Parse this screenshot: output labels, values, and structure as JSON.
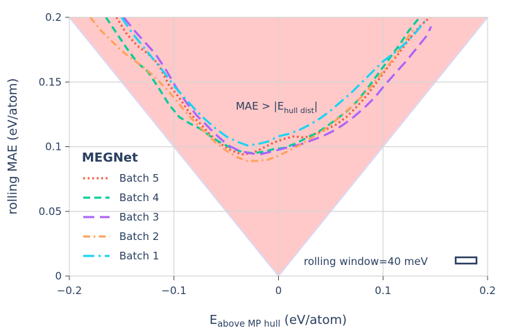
{
  "chart_data": {
    "type": "line",
    "xlabel_main": "E",
    "xlabel_sub": "above MP hull",
    "xlabel_unit": " (eV/atom)",
    "ylabel": "rolling MAE (eV/atom)",
    "xlim": [
      -0.2,
      0.2
    ],
    "ylim": [
      0,
      0.2
    ],
    "x_ticks": [
      -0.2,
      -0.1,
      0,
      0.1,
      0.2
    ],
    "x_tick_labels": [
      "−0.2",
      "−0.1",
      "0",
      "0.1",
      "0.2"
    ],
    "y_ticks": [
      0,
      0.05,
      0.1,
      0.15,
      0.2
    ],
    "y_tick_labels": [
      "0",
      "0.05",
      "0.1",
      "0.15",
      "0.2"
    ],
    "grid": true,
    "triangle_annotation": {
      "prefix": "MAE > |E",
      "sub": "hull dist",
      "suffix": "|",
      "fill": "#ffc9c9"
    },
    "window_annotation": "rolling window=40 meV",
    "legend": {
      "title": "MEGNet",
      "placement": "bottom-left"
    },
    "series": [
      {
        "name": "Batch 5",
        "color": "#ef553b",
        "dash": "dot",
        "x": [
          -0.155,
          -0.145,
          -0.135,
          -0.125,
          -0.115,
          -0.105,
          -0.095,
          -0.085,
          -0.075,
          -0.065,
          -0.055,
          -0.045,
          -0.035,
          -0.025,
          -0.015,
          -0.005,
          0.005,
          0.015,
          0.025,
          0.035,
          0.045,
          0.055,
          0.065,
          0.075,
          0.085,
          0.095,
          0.105,
          0.115,
          0.125,
          0.135,
          0.145
        ],
        "y": [
          0.2,
          0.187,
          0.178,
          0.172,
          0.164,
          0.148,
          0.138,
          0.126,
          0.118,
          0.109,
          0.102,
          0.097,
          0.094,
          0.095,
          0.099,
          0.103,
          0.106,
          0.108,
          0.107,
          0.11,
          0.113,
          0.117,
          0.123,
          0.131,
          0.14,
          0.151,
          0.162,
          0.172,
          0.183,
          0.193,
          0.2
        ]
      },
      {
        "name": "Batch 4",
        "color": "#00cc96",
        "dash": "dash",
        "x": [
          -0.165,
          -0.155,
          -0.145,
          -0.135,
          -0.125,
          -0.115,
          -0.105,
          -0.095,
          -0.085,
          -0.075,
          -0.065,
          -0.055,
          -0.045,
          -0.035,
          -0.025,
          -0.015,
          -0.005,
          0.005,
          0.015,
          0.025,
          0.035,
          0.045,
          0.055,
          0.065,
          0.075,
          0.085,
          0.095,
          0.105,
          0.115,
          0.125,
          0.135
        ],
        "y": [
          0.2,
          0.188,
          0.176,
          0.165,
          0.158,
          0.146,
          0.133,
          0.123,
          0.118,
          0.114,
          0.108,
          0.103,
          0.099,
          0.096,
          0.095,
          0.096,
          0.098,
          0.099,
          0.102,
          0.106,
          0.11,
          0.115,
          0.121,
          0.127,
          0.135,
          0.145,
          0.156,
          0.167,
          0.178,
          0.19,
          0.2
        ]
      },
      {
        "name": "Batch 3",
        "color": "#ab63fa",
        "dash": "longdash",
        "x": [
          -0.148,
          -0.138,
          -0.128,
          -0.118,
          -0.108,
          -0.098,
          -0.088,
          -0.078,
          -0.068,
          -0.058,
          -0.048,
          -0.038,
          -0.028,
          -0.018,
          -0.008,
          0.002,
          0.012,
          0.022,
          0.032,
          0.042,
          0.052,
          0.062,
          0.072,
          0.082,
          0.092,
          0.102,
          0.112,
          0.122,
          0.132,
          0.142,
          0.146
        ],
        "y": [
          0.2,
          0.19,
          0.181,
          0.172,
          0.16,
          0.146,
          0.134,
          0.124,
          0.116,
          0.108,
          0.101,
          0.097,
          0.095,
          0.094,
          0.096,
          0.098,
          0.1,
          0.102,
          0.105,
          0.108,
          0.112,
          0.117,
          0.123,
          0.13,
          0.138,
          0.148,
          0.157,
          0.166,
          0.176,
          0.186,
          0.193
        ]
      },
      {
        "name": "Batch 2",
        "color": "#ffa15a",
        "dash": "dashdot",
        "x": [
          -0.18,
          -0.17,
          -0.16,
          -0.15,
          -0.14,
          -0.13,
          -0.12,
          -0.11,
          -0.1,
          -0.09,
          -0.08,
          -0.07,
          -0.06,
          -0.05,
          -0.04,
          -0.03,
          -0.02,
          -0.01,
          0.0,
          0.01,
          0.02,
          0.03,
          0.04,
          0.05,
          0.06,
          0.07,
          0.08,
          0.09,
          0.1,
          0.11,
          0.12,
          0.13
        ],
        "y": [
          0.2,
          0.19,
          0.182,
          0.174,
          0.168,
          0.162,
          0.155,
          0.147,
          0.138,
          0.128,
          0.119,
          0.111,
          0.103,
          0.097,
          0.092,
          0.089,
          0.089,
          0.09,
          0.093,
          0.097,
          0.101,
          0.106,
          0.111,
          0.117,
          0.124,
          0.131,
          0.139,
          0.148,
          0.158,
          0.168,
          0.18,
          0.192
        ]
      },
      {
        "name": "Batch 1",
        "color": "#19d3f3",
        "dash": "longdashdot",
        "x": [
          -0.15,
          -0.14,
          -0.13,
          -0.12,
          -0.11,
          -0.1,
          -0.09,
          -0.08,
          -0.07,
          -0.06,
          -0.05,
          -0.04,
          -0.03,
          -0.02,
          -0.01,
          0.0,
          0.01,
          0.02,
          0.03,
          0.04,
          0.05,
          0.06,
          0.07,
          0.08,
          0.09,
          0.1,
          0.11,
          0.12,
          0.13,
          0.14
        ],
        "y": [
          0.2,
          0.188,
          0.178,
          0.168,
          0.158,
          0.147,
          0.138,
          0.129,
          0.121,
          0.114,
          0.108,
          0.104,
          0.101,
          0.102,
          0.104,
          0.108,
          0.11,
          0.113,
          0.117,
          0.122,
          0.128,
          0.135,
          0.142,
          0.15,
          0.158,
          0.166,
          0.172,
          0.179,
          0.187,
          0.197
        ]
      }
    ]
  }
}
